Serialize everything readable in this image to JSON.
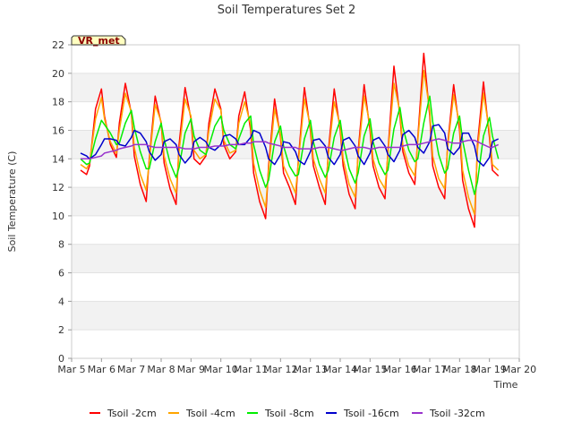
{
  "chart_data": {
    "type": "line",
    "title": "Soil Temperatures Set 2",
    "xlabel": "Time",
    "ylabel": "Soil Temperature (C)",
    "ylim": [
      0,
      22
    ],
    "xlim": [
      5,
      20
    ],
    "yticks": [
      0,
      2,
      4,
      6,
      8,
      10,
      12,
      14,
      16,
      18,
      20,
      22
    ],
    "xticks": [
      {
        "x": 5,
        "label": "Mar 5"
      },
      {
        "x": 6,
        "label": "Mar 6"
      },
      {
        "x": 7,
        "label": "Mar 7"
      },
      {
        "x": 8,
        "label": "Mar 8"
      },
      {
        "x": 9,
        "label": "Mar 9"
      },
      {
        "x": 10,
        "label": "Mar 10"
      },
      {
        "x": 11,
        "label": "Mar 11"
      },
      {
        "x": 12,
        "label": "Mar 12"
      },
      {
        "x": 13,
        "label": "Mar 13"
      },
      {
        "x": 14,
        "label": "Mar 14"
      },
      {
        "x": 15,
        "label": "Mar 15"
      },
      {
        "x": 16,
        "label": "Mar 16"
      },
      {
        "x": 17,
        "label": "Mar 17"
      },
      {
        "x": 18,
        "label": "Mar 18"
      },
      {
        "x": 19,
        "label": "Mar 19"
      },
      {
        "x": 20,
        "label": "Mar 20"
      }
    ],
    "grid": "horizontal-bands",
    "legend": "bottom",
    "badge": "VR_met",
    "series": [
      {
        "name": "Tsoil -2cm",
        "color": "#ff0000",
        "x": [
          5.3,
          5.5,
          5.6,
          5.8,
          6.0,
          6.1,
          6.3,
          6.5,
          6.6,
          6.8,
          7.0,
          7.1,
          7.3,
          7.5,
          7.6,
          7.8,
          8.0,
          8.1,
          8.3,
          8.5,
          8.6,
          8.8,
          9.0,
          9.1,
          9.3,
          9.5,
          9.6,
          9.8,
          10.0,
          10.1,
          10.3,
          10.5,
          10.6,
          10.8,
          11.0,
          11.1,
          11.3,
          11.5,
          11.6,
          11.8,
          12.0,
          12.1,
          12.3,
          12.5,
          12.6,
          12.8,
          13.0,
          13.1,
          13.3,
          13.5,
          13.6,
          13.8,
          14.0,
          14.1,
          14.3,
          14.5,
          14.6,
          14.8,
          15.0,
          15.1,
          15.3,
          15.5,
          15.6,
          15.8,
          16.0,
          16.1,
          16.3,
          16.5,
          16.6,
          16.8,
          17.0,
          17.1,
          17.3,
          17.5,
          17.6,
          17.8,
          18.0,
          18.1,
          18.3,
          18.5,
          18.6,
          18.8,
          19.0,
          19.1,
          19.3
        ],
        "values": [
          13.2,
          12.9,
          13.5,
          17.5,
          18.9,
          17.0,
          15.0,
          14.1,
          16.5,
          19.3,
          17.2,
          14.2,
          12.2,
          11.0,
          14.0,
          18.4,
          16.5,
          13.7,
          11.9,
          10.8,
          15.0,
          19.0,
          16.8,
          14.0,
          13.6,
          14.2,
          16.5,
          18.9,
          17.5,
          15.0,
          14.0,
          14.5,
          17.0,
          18.7,
          16.0,
          13.0,
          11.0,
          9.8,
          13.5,
          18.2,
          15.5,
          13.0,
          12.0,
          10.8,
          14.0,
          19.0,
          16.0,
          13.5,
          12.0,
          10.8,
          14.5,
          18.9,
          16.0,
          13.5,
          11.5,
          10.5,
          14.5,
          19.2,
          16.0,
          13.5,
          12.0,
          11.2,
          14.5,
          20.5,
          17.0,
          14.5,
          13.0,
          12.2,
          15.5,
          21.4,
          17.0,
          13.5,
          12.0,
          11.2,
          15.0,
          19.2,
          16.0,
          12.5,
          10.5,
          9.2,
          15.0,
          19.4,
          15.5,
          13.2,
          12.8
        ]
      },
      {
        "name": "Tsoil -4cm",
        "color": "#ffa500",
        "x": [
          5.3,
          5.5,
          5.6,
          5.8,
          6.0,
          6.1,
          6.3,
          6.5,
          6.6,
          6.8,
          7.0,
          7.1,
          7.3,
          7.5,
          7.6,
          7.8,
          8.0,
          8.1,
          8.3,
          8.5,
          8.6,
          8.8,
          9.0,
          9.1,
          9.3,
          9.5,
          9.6,
          9.8,
          10.0,
          10.1,
          10.3,
          10.5,
          10.6,
          10.8,
          11.0,
          11.1,
          11.3,
          11.5,
          11.6,
          11.8,
          12.0,
          12.1,
          12.3,
          12.5,
          12.6,
          12.8,
          13.0,
          13.1,
          13.3,
          13.5,
          13.6,
          13.8,
          14.0,
          14.1,
          14.3,
          14.5,
          14.6,
          14.8,
          15.0,
          15.1,
          15.3,
          15.5,
          15.6,
          15.8,
          16.0,
          16.1,
          16.3,
          16.5,
          16.6,
          16.8,
          17.0,
          17.1,
          17.3,
          17.5,
          17.6,
          17.8,
          18.0,
          18.1,
          18.3,
          18.5,
          18.6,
          18.8,
          19.0,
          19.1,
          19.3
        ],
        "values": [
          13.6,
          13.3,
          13.7,
          16.8,
          18.3,
          16.8,
          15.2,
          14.4,
          16.0,
          18.6,
          17.3,
          14.8,
          12.9,
          11.8,
          13.8,
          17.8,
          16.6,
          14.2,
          12.6,
          11.6,
          14.5,
          18.2,
          17.0,
          14.6,
          14.0,
          14.3,
          16.0,
          18.2,
          17.4,
          15.3,
          14.4,
          14.6,
          16.5,
          18.0,
          16.4,
          13.7,
          11.8,
          10.6,
          13.2,
          17.5,
          15.7,
          13.5,
          12.6,
          11.6,
          13.8,
          18.2,
          16.3,
          14.0,
          12.6,
          11.6,
          14.2,
          18.0,
          16.3,
          14.0,
          12.2,
          11.3,
          14.2,
          18.4,
          16.4,
          14.0,
          12.6,
          11.9,
          14.3,
          19.3,
          17.3,
          14.9,
          13.5,
          12.8,
          15.3,
          20.2,
          17.4,
          14.2,
          12.6,
          11.9,
          14.8,
          18.5,
          16.4,
          13.2,
          11.3,
          10.1,
          14.6,
          18.6,
          15.9,
          13.6,
          13.2
        ]
      },
      {
        "name": "Tsoil -8cm",
        "color": "#00ee00",
        "x": [
          5.3,
          5.5,
          5.6,
          5.8,
          6.0,
          6.1,
          6.3,
          6.5,
          6.6,
          6.8,
          7.0,
          7.1,
          7.3,
          7.5,
          7.6,
          7.8,
          8.0,
          8.1,
          8.3,
          8.5,
          8.6,
          8.8,
          9.0,
          9.1,
          9.3,
          9.5,
          9.6,
          9.8,
          10.0,
          10.1,
          10.3,
          10.5,
          10.6,
          10.8,
          11.0,
          11.1,
          11.3,
          11.5,
          11.6,
          11.8,
          12.0,
          12.1,
          12.3,
          12.5,
          12.6,
          12.8,
          13.0,
          13.1,
          13.3,
          13.5,
          13.6,
          13.8,
          14.0,
          14.1,
          14.3,
          14.5,
          14.6,
          14.8,
          15.0,
          15.1,
          15.3,
          15.5,
          15.6,
          15.8,
          16.0,
          16.1,
          16.3,
          16.5,
          16.6,
          16.8,
          17.0,
          17.1,
          17.3,
          17.5,
          17.6,
          17.8,
          18.0,
          18.1,
          18.3,
          18.5,
          18.6,
          18.8,
          19.0,
          19.1,
          19.3
        ],
        "values": [
          14.0,
          13.6,
          13.7,
          15.4,
          16.7,
          16.4,
          15.8,
          15.0,
          15.1,
          16.5,
          17.4,
          16.2,
          14.5,
          13.3,
          13.3,
          15.2,
          16.5,
          15.4,
          13.7,
          12.7,
          13.4,
          15.8,
          16.8,
          15.6,
          14.6,
          14.3,
          14.9,
          16.3,
          17.0,
          16.0,
          15.0,
          14.7,
          15.4,
          16.5,
          17.0,
          15.0,
          13.2,
          12.0,
          12.5,
          15.2,
          16.3,
          14.9,
          13.5,
          12.8,
          12.9,
          15.4,
          16.7,
          15.2,
          13.6,
          12.7,
          13.2,
          15.5,
          16.7,
          15.2,
          13.3,
          12.3,
          13.0,
          15.6,
          16.8,
          15.2,
          13.7,
          12.9,
          13.2,
          16.1,
          17.6,
          16.2,
          14.6,
          13.8,
          14.0,
          16.5,
          18.4,
          16.6,
          14.3,
          13.0,
          13.3,
          15.8,
          17.0,
          15.3,
          13.2,
          11.5,
          12.4,
          15.6,
          16.9,
          15.6,
          14.0
        ]
      },
      {
        "name": "Tsoil -16cm",
        "color": "#0000cc",
        "x": [
          5.3,
          5.5,
          5.6,
          5.8,
          6.0,
          6.1,
          6.3,
          6.5,
          6.6,
          6.8,
          7.0,
          7.1,
          7.3,
          7.5,
          7.6,
          7.8,
          8.0,
          8.1,
          8.3,
          8.5,
          8.6,
          8.8,
          9.0,
          9.1,
          9.3,
          9.5,
          9.6,
          9.8,
          10.0,
          10.1,
          10.3,
          10.5,
          10.6,
          10.8,
          11.0,
          11.1,
          11.3,
          11.5,
          11.6,
          11.8,
          12.0,
          12.1,
          12.3,
          12.5,
          12.6,
          12.8,
          13.0,
          13.1,
          13.3,
          13.5,
          13.6,
          13.8,
          14.0,
          14.1,
          14.3,
          14.5,
          14.6,
          14.8,
          15.0,
          15.1,
          15.3,
          15.5,
          15.6,
          15.8,
          16.0,
          16.1,
          16.3,
          16.5,
          16.6,
          16.8,
          17.0,
          17.1,
          17.3,
          17.5,
          17.6,
          17.8,
          18.0,
          18.1,
          18.3,
          18.5,
          18.6,
          18.8,
          19.0,
          19.1,
          19.3
        ],
        "values": [
          14.4,
          14.2,
          14.0,
          14.3,
          15.0,
          15.4,
          15.4,
          15.3,
          15.0,
          14.9,
          15.5,
          16.0,
          15.8,
          15.2,
          14.5,
          13.9,
          14.3,
          15.2,
          15.4,
          15.0,
          14.3,
          13.7,
          14.2,
          15.2,
          15.5,
          15.2,
          14.8,
          14.6,
          15.0,
          15.6,
          15.7,
          15.4,
          15.0,
          15.0,
          15.5,
          16.0,
          15.8,
          14.8,
          14.0,
          13.6,
          14.3,
          15.2,
          15.1,
          14.5,
          13.9,
          13.6,
          14.5,
          15.3,
          15.4,
          14.9,
          14.1,
          13.6,
          14.3,
          15.3,
          15.5,
          14.9,
          14.2,
          13.6,
          14.4,
          15.3,
          15.5,
          14.9,
          14.3,
          13.8,
          14.6,
          15.7,
          16.0,
          15.5,
          14.8,
          14.4,
          15.2,
          16.3,
          16.4,
          15.8,
          14.7,
          14.3,
          14.8,
          15.8,
          15.8,
          14.9,
          13.9,
          13.5,
          14.1,
          15.2,
          15.4
        ]
      },
      {
        "name": "Tsoil -32cm",
        "color": "#9933cc",
        "x": [
          5.3,
          5.5,
          5.6,
          5.8,
          6.0,
          6.1,
          6.3,
          6.5,
          6.6,
          6.8,
          7.0,
          7.1,
          7.3,
          7.5,
          7.6,
          7.8,
          8.0,
          8.1,
          8.3,
          8.5,
          8.6,
          8.8,
          9.0,
          9.1,
          9.3,
          9.5,
          9.6,
          9.8,
          10.0,
          10.1,
          10.3,
          10.5,
          10.6,
          10.8,
          11.0,
          11.1,
          11.3,
          11.5,
          11.6,
          11.8,
          12.0,
          12.1,
          12.3,
          12.5,
          12.6,
          12.8,
          13.0,
          13.1,
          13.3,
          13.5,
          13.6,
          13.8,
          14.0,
          14.1,
          14.3,
          14.5,
          14.6,
          14.8,
          15.0,
          15.1,
          15.3,
          15.5,
          15.6,
          15.8,
          16.0,
          16.1,
          16.3,
          16.5,
          16.6,
          16.8,
          17.0,
          17.1,
          17.3,
          17.5,
          17.6,
          17.8,
          18.0,
          18.1,
          18.3,
          18.5,
          18.6,
          18.8,
          19.0,
          19.1,
          19.3
        ],
        "values": [
          14.0,
          14.0,
          14.0,
          14.1,
          14.2,
          14.4,
          14.5,
          14.6,
          14.7,
          14.8,
          14.9,
          15.0,
          15.0,
          15.0,
          14.9,
          14.8,
          14.8,
          14.8,
          14.8,
          14.8,
          14.8,
          14.7,
          14.7,
          14.7,
          14.8,
          14.8,
          14.8,
          14.9,
          14.9,
          14.9,
          15.0,
          15.0,
          15.0,
          15.1,
          15.1,
          15.2,
          15.2,
          15.2,
          15.1,
          15.0,
          14.9,
          14.8,
          14.8,
          14.8,
          14.7,
          14.7,
          14.7,
          14.7,
          14.8,
          14.8,
          14.8,
          14.7,
          14.6,
          14.6,
          14.7,
          14.8,
          14.8,
          14.8,
          14.7,
          14.7,
          14.8,
          14.8,
          14.8,
          14.8,
          14.8,
          14.9,
          15.0,
          15.0,
          15.0,
          15.1,
          15.2,
          15.3,
          15.4,
          15.3,
          15.2,
          15.1,
          15.1,
          15.2,
          15.3,
          15.3,
          15.2,
          15.0,
          14.8,
          14.8,
          15.0
        ]
      }
    ]
  }
}
